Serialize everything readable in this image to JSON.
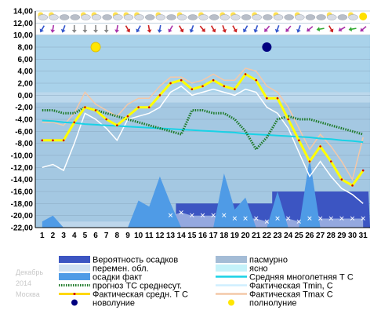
{
  "side_info": {
    "month": "Декабрь",
    "year": "2014",
    "city": "Москва"
  },
  "chart_data": {
    "type": "line",
    "x": [
      1,
      2,
      3,
      4,
      5,
      6,
      7,
      8,
      9,
      10,
      11,
      12,
      13,
      14,
      15,
      16,
      17,
      18,
      19,
      20,
      21,
      22,
      23,
      24,
      25,
      26,
      27,
      28,
      29,
      30,
      31
    ],
    "ylim": [
      -22,
      14
    ],
    "yticks": [
      "14,00",
      "12,00",
      "10,00",
      "8,00",
      "6,00",
      "4,00",
      "2,00",
      "0,00",
      "-2,00",
      "-4,00",
      "-6,00",
      "-8,00",
      "-10,00",
      "-12,00",
      "-14,00",
      "-16,00",
      "-18,00",
      "-20,00",
      "-22,00"
    ],
    "grid": true,
    "colors": {
      "sky": "#a9d2ea",
      "cloud_band": "#bcd8ec",
      "lower_band": "#a4c8e2",
      "precip_prob": "#3c55c2",
      "precip_fact": "#4f9be6",
      "avg_norm": "#19d2e6",
      "forecast": "#1e7a28",
      "fact_avg": "#ffff00",
      "tmin": "#e6f8ff",
      "tmax": "#f4c8a8",
      "new_moon": "#000080",
      "full_moon": "#ffe600"
    },
    "series": [
      {
        "name": "Фактическая средн. Т С",
        "values": [
          -7.5,
          -7.5,
          -7.5,
          -4.5,
          -2,
          -2.5,
          -4,
          -5,
          -3.5,
          -2,
          -2,
          0,
          2,
          2.5,
          1,
          1.5,
          2.5,
          1.5,
          1,
          3.5,
          2.5,
          -0.5,
          -0.5,
          -4,
          -7.5,
          -11,
          -8.5,
          -11,
          -14,
          -15,
          -12.5
        ]
      },
      {
        "name": "Фактическая Tmin, С",
        "values": [
          -12,
          -11.5,
          -12.5,
          -8,
          -3,
          -4,
          -5.5,
          -7.5,
          -4,
          -3.5,
          -3,
          -2,
          0.5,
          1.5,
          0,
          0.5,
          1,
          0.5,
          0,
          1,
          0.5,
          -2,
          -3,
          -5.5,
          -9.5,
          -13.5,
          -11,
          -13.5,
          -15.5,
          -16.5,
          -18
        ]
      },
      {
        "name": "Фактическая Tmax С",
        "values": [
          -4.5,
          -4.5,
          -5,
          -3,
          0.5,
          -1.5,
          -2.5,
          -3.5,
          -1.5,
          -0.5,
          -0.5,
          1.5,
          3,
          3,
          2,
          2.5,
          3.5,
          2.5,
          2.5,
          4.5,
          4,
          1.5,
          0.5,
          -2,
          -5.5,
          -9,
          -6.5,
          -8.5,
          -11,
          -14,
          -7
        ]
      },
      {
        "name": "Средняя многолетняя Т С",
        "values": [
          -4.2,
          -4.3,
          -4.5,
          -4.6,
          -4.8,
          -4.9,
          -5,
          -5.1,
          -5.2,
          -5.3,
          -5.4,
          -5.5,
          -5.6,
          -5.7,
          -5.8,
          -5.9,
          -6,
          -6.1,
          -6.2,
          -6.4,
          -6.5,
          -6.6,
          -6.7,
          -6.8,
          -6.9,
          -7,
          -7.2,
          -7.3,
          -7.5,
          -7.6,
          -7.8
        ]
      },
      {
        "name": "прогноз ТС среднесут.",
        "values": [
          -2.5,
          -2.5,
          -3,
          -3,
          -2,
          -2.5,
          -3,
          -3.5,
          -4,
          -4.5,
          -5,
          -5.5,
          -6,
          -6.5,
          -2.5,
          -2.5,
          -3,
          -3,
          -4,
          -6,
          -9,
          -7,
          -4,
          -3.5,
          -4,
          -4,
          -4.5,
          -5,
          -5.5,
          -6,
          -6.5
        ]
      },
      {
        "name": "осадки факт",
        "values": [
          -21,
          -20,
          -22,
          -22,
          -22,
          -22,
          -22,
          -22,
          -22,
          -17.5,
          -18.5,
          -13.5,
          -18,
          -22,
          -22,
          -22,
          -22,
          -13,
          -19,
          -17,
          -22,
          -22,
          -16,
          -22,
          -22,
          -10.5,
          -22,
          -22,
          -22,
          -22,
          -22
        ]
      },
      {
        "name": "Вероятность осадков",
        "values": [
          -22,
          -22,
          -22,
          -22,
          -22,
          -22,
          -22,
          -22,
          -22,
          -22,
          -22,
          -22,
          -22,
          -18,
          -18,
          -18,
          -18,
          -18,
          -18,
          -18,
          -18,
          -18,
          -16,
          -16,
          -16,
          -16,
          -16,
          -16,
          -16,
          -16,
          -16
        ]
      },
      {
        "name": "перемен. обл.",
        "values": [
          -21,
          -21,
          -21,
          -21,
          -21,
          -21,
          -21,
          -21,
          -21,
          -21,
          -20.5,
          -20.5,
          -20,
          -19.5,
          -20,
          -20,
          -20,
          -20,
          -20.5,
          -20.5,
          -20.5,
          -21,
          -20.5,
          -20.5,
          -21,
          -20.5,
          -20.5,
          -20.5,
          -20.5,
          -20.5,
          -20.5
        ]
      }
    ],
    "new_moon_day": 22,
    "full_moon_day": 6,
    "icons_top": [
      "partly-cloudy",
      "partly-cloudy",
      "cloudy",
      "cloudy",
      "partly-cloudy",
      "partly-cloudy",
      "cloudy",
      "partly-cloudy",
      "partly-cloudy",
      "partly-cloudy",
      "cloudy",
      "partly-cloudy",
      "cloudy",
      "partly-cloudy",
      "cloudy",
      "partly-cloudy",
      "cloudy",
      "partly-cloudy",
      "partly-cloudy",
      "cloudy",
      "partly-cloudy",
      "cloudy",
      "partly-cloudy",
      "cloudy",
      "partly-cloudy",
      "cloudy",
      "cloudy",
      "partly-cloudy",
      "cloudy",
      "partly-cloudy",
      "sunny"
    ],
    "wind_colors": [
      "#3355cc",
      "#aa33aa",
      "#3355cc",
      "#888888",
      "#888888",
      "#888888",
      "#888888",
      "#aa33aa",
      "#cc2222",
      "#3355cc",
      "#cc2222",
      "#3355cc",
      "#aa33aa",
      "#cc2222",
      "#3355cc",
      "#cc2222",
      "#cc2222",
      "#cc2222",
      "#cc2222",
      "#3355cc",
      "#3355cc",
      "#aa33aa",
      "#3355cc",
      "#aa33aa",
      "#3355cc",
      "#aa33aa",
      "#33aa33",
      "#cc2222",
      "#aa33aa",
      "#33aa33",
      "#aa33aa"
    ],
    "wind_dirs": [
      120,
      100,
      110,
      90,
      90,
      90,
      90,
      100,
      60,
      120,
      80,
      100,
      120,
      60,
      110,
      50,
      60,
      70,
      60,
      120,
      110,
      130,
      110,
      130,
      110,
      140,
      170,
      60,
      150,
      170,
      140
    ],
    "legend": [
      {
        "label": "Вероятность осадков",
        "type": "box",
        "color": "#3c55c2"
      },
      {
        "label": "пасмурно",
        "type": "box",
        "color": "#a4bcd6"
      },
      {
        "label": "перемен. обл.",
        "type": "box",
        "color": "#cfe0f2"
      },
      {
        "label": "ясно",
        "type": "box",
        "color": "#c4f2fa"
      },
      {
        "label": "осадки факт",
        "type": "box",
        "color": "#4f9be6"
      },
      {
        "label": "Средняя многолетняя Т С",
        "type": "line",
        "color": "#19d2e6"
      },
      {
        "label": "прогноз ТС среднесут.",
        "type": "dotted",
        "color": "#1e7a28"
      },
      {
        "label": "Фактическая Tmin, С",
        "type": "line",
        "color": "#cfefff"
      },
      {
        "label": "Фактическая средн. Т С",
        "type": "markerline",
        "color": "#ffd800"
      },
      {
        "label": "Фактическая Tmax С",
        "type": "line",
        "color": "#f4c8a8"
      },
      {
        "label": "новолуние",
        "type": "dot",
        "color": "#000080"
      },
      {
        "label": "полнолуние",
        "type": "dot",
        "color": "#ffe600"
      }
    ]
  }
}
